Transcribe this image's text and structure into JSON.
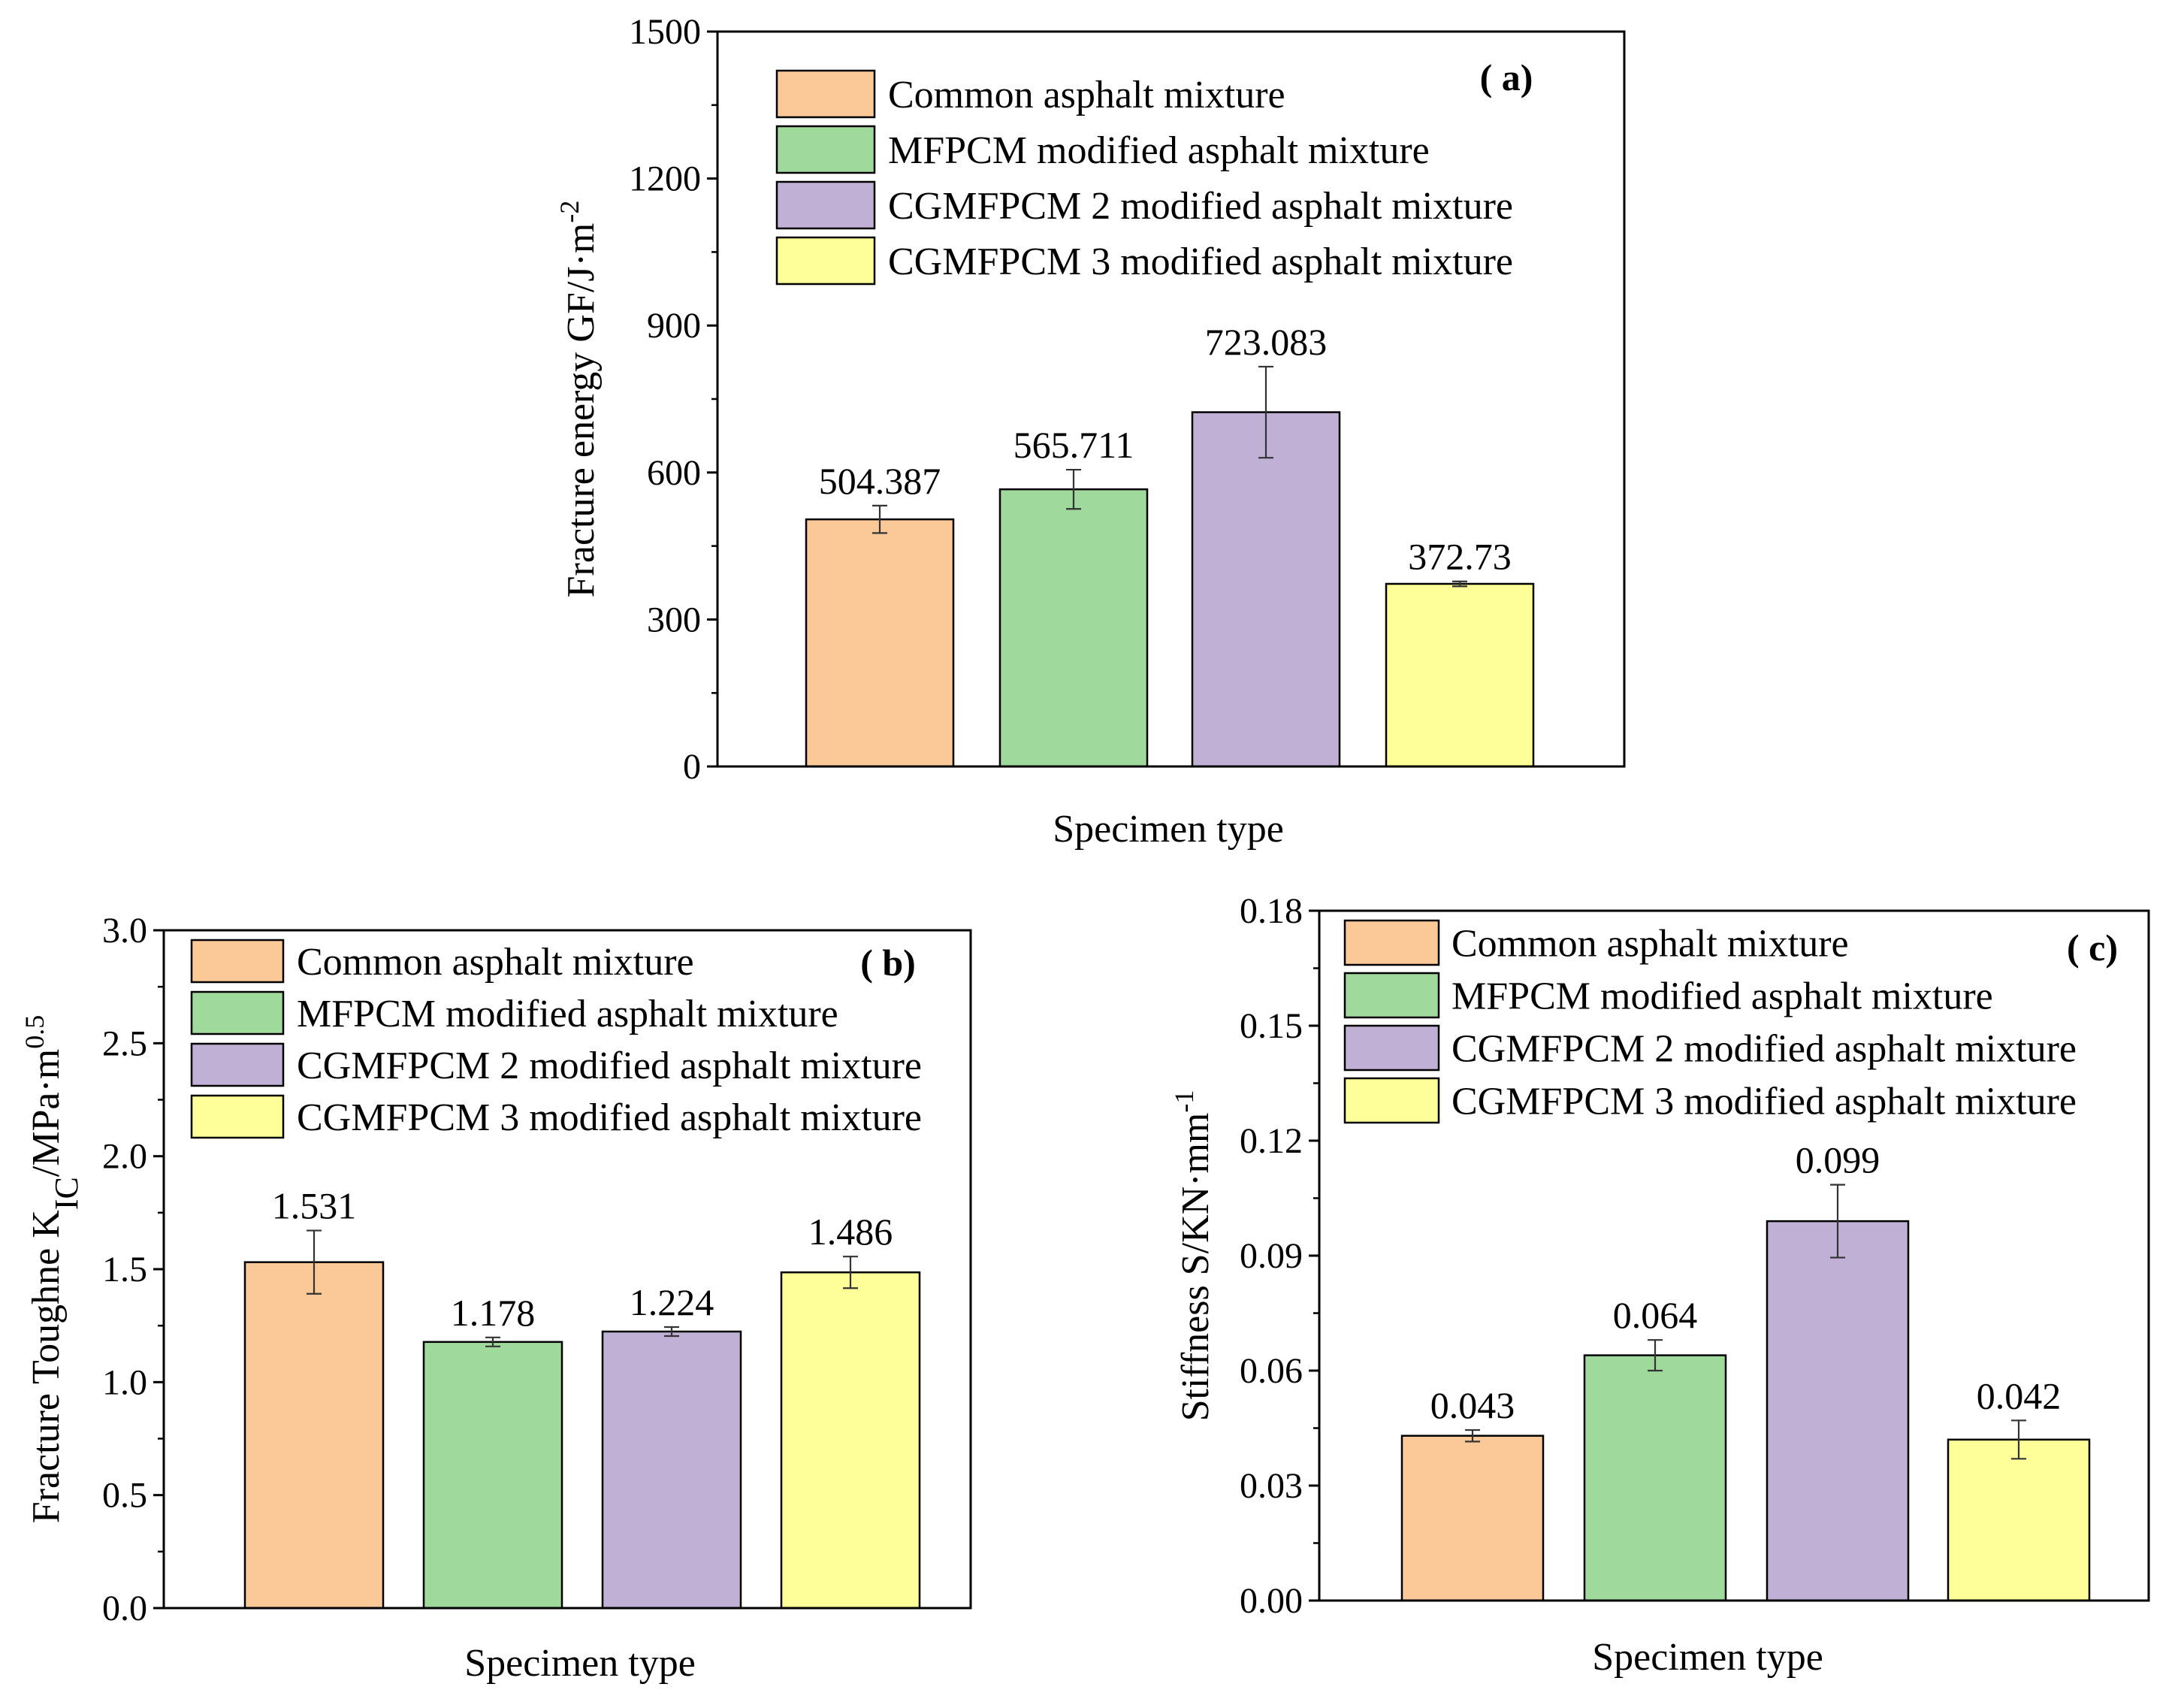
{
  "colors": {
    "common": "#fbc898",
    "mfpcm": "#9fd99c",
    "cg2": "#c0b0d6",
    "cg3": "#ffff99"
  },
  "chart_data": [
    {
      "type": "bar",
      "panel": "( a)",
      "categories": [
        "Common asphalt mixture",
        "MFPCM modified asphalt mixture",
        "CGMFPCM 2 modified asphalt mixture",
        "CGMFPCM 3 modified asphalt mixture"
      ],
      "values": [
        504.387,
        565.711,
        723.083,
        372.73
      ],
      "value_labels": [
        "504.387",
        "565.711",
        "723.083",
        "372.73"
      ],
      "errors": [
        28,
        40,
        93,
        5
      ],
      "ylabel": "Fracture energy GF/J·m",
      "ylabel_sup": "-2",
      "ylabel_sub": "",
      "ylabel_tail": "",
      "xlabel": "Specimen type",
      "ylim": [
        0,
        1500
      ],
      "yticks": [
        0,
        300,
        600,
        900,
        1200,
        1500
      ],
      "ytick_labels": [
        "0",
        "300",
        "600",
        "900",
        "1200",
        "1500"
      ],
      "legend": [
        "Common asphalt mixture",
        "MFPCM modified asphalt mixture",
        "CGMFPCM 2 modified asphalt mixture",
        "CGMFPCM 3 modified asphalt mixture"
      ],
      "legend_position": "top-left"
    },
    {
      "type": "bar",
      "panel": "( b)",
      "categories": [
        "Common asphalt mixture",
        "MFPCM modified asphalt mixture",
        "CGMFPCM 2 modified asphalt mixture",
        "CGMFPCM 3 modified asphalt mixture"
      ],
      "values": [
        1.531,
        1.178,
        1.224,
        1.486
      ],
      "value_labels": [
        "1.531",
        "1.178",
        "1.224",
        "1.486"
      ],
      "errors": [
        0.14,
        0.02,
        0.02,
        0.07
      ],
      "ylabel": "Fracture Toughne K",
      "ylabel_sub": "IC",
      "ylabel_tail": "/MPa·m",
      "ylabel_sup": "0.5",
      "xlabel": "Specimen type",
      "ylim": [
        0,
        3.0
      ],
      "yticks": [
        0,
        0.5,
        1.0,
        1.5,
        2.0,
        2.5,
        3.0
      ],
      "ytick_labels": [
        "0.0",
        "0.5",
        "1.0",
        "1.5",
        "2.0",
        "2.5",
        "3.0"
      ],
      "legend": [
        "Common asphalt mixture",
        "MFPCM modified asphalt mixture",
        "CGMFPCM 2 modified asphalt mixture",
        "CGMFPCM 3 modified asphalt mixture"
      ],
      "legend_position": "top-left"
    },
    {
      "type": "bar",
      "panel": "( c)",
      "categories": [
        "Common asphalt mixture",
        "MFPCM modified asphalt mixture",
        "CGMFPCM 2 modified asphalt mixture",
        "CGMFPCM 3 modified asphalt mixture"
      ],
      "values": [
        0.043,
        0.064,
        0.099,
        0.042
      ],
      "value_labels": [
        "0.043",
        "0.064",
        "0.099",
        "0.042"
      ],
      "errors": [
        0.0015,
        0.004,
        0.0095,
        0.005
      ],
      "ylabel": "Stiffness S/KN·mm",
      "ylabel_sup": "-1",
      "ylabel_sub": "",
      "ylabel_tail": "",
      "xlabel": "Specimen type",
      "ylim": [
        0,
        0.18
      ],
      "yticks": [
        0,
        0.03,
        0.06,
        0.09,
        0.12,
        0.15,
        0.18
      ],
      "ytick_labels": [
        "0.00",
        "0.03",
        "0.06",
        "0.09",
        "0.12",
        "0.15",
        "0.18"
      ],
      "legend": [
        "Common asphalt mixture",
        "MFPCM modified asphalt mixture",
        "CGMFPCM 2 modified asphalt mixture",
        "CGMFPCM 3 modified asphalt mixture"
      ],
      "legend_position": "top-left"
    }
  ]
}
